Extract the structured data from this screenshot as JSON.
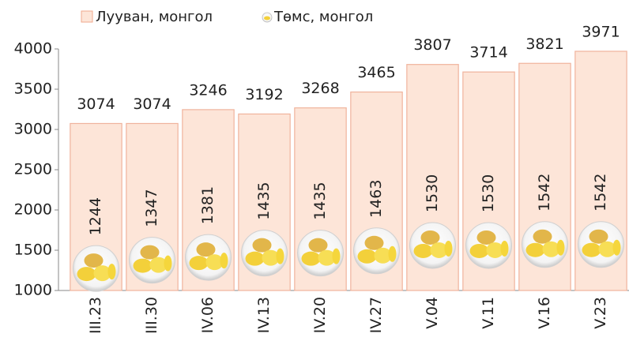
{
  "chart_data": {
    "type": "bar",
    "categories": [
      "III.23",
      "III.30",
      "IV.06",
      "IV.13",
      "IV.20",
      "IV.27",
      "V.04",
      "V.11",
      "V.16",
      "V.23"
    ],
    "series": [
      {
        "name": "Лууван, монгол",
        "color": "#fde5d8",
        "values": [
          3074,
          3074,
          3246,
          3192,
          3268,
          3465,
          3807,
          3714,
          3821,
          3971
        ]
      },
      {
        "name": "Төмс, монгол",
        "color": "#f3d03a",
        "values": [
          1244,
          1347,
          1381,
          1435,
          1435,
          1463,
          1530,
          1530,
          1542,
          1542
        ]
      }
    ],
    "ylim": [
      1000,
      4000
    ],
    "yticks": [
      1000,
      1500,
      2000,
      2500,
      3000,
      3500,
      4000
    ]
  }
}
